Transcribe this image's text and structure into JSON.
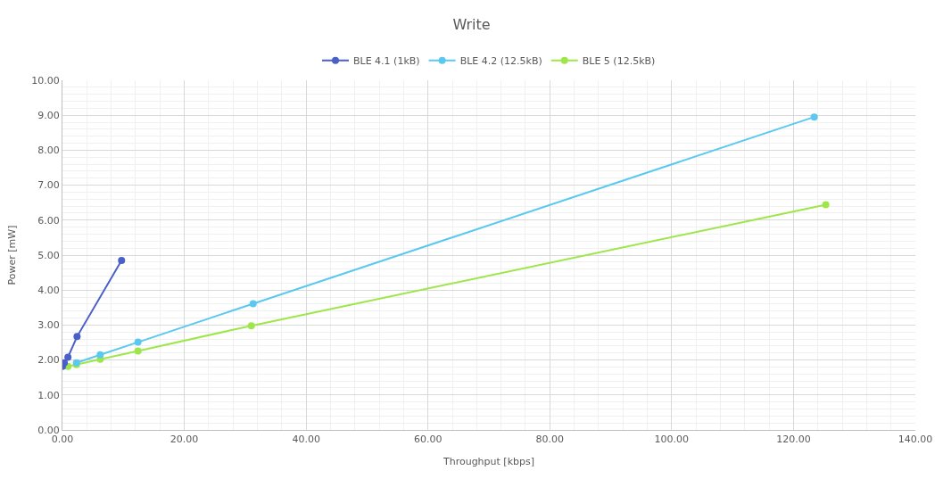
{
  "chart_data": {
    "type": "line",
    "title": "Write",
    "xlabel": "Throughput [kbps]",
    "ylabel": "Power [mW]",
    "xlim": [
      0,
      140
    ],
    "ylim": [
      0,
      10
    ],
    "xticks": [
      {
        "value": 0,
        "label": "0.00"
      },
      {
        "value": 20,
        "label": "20.00"
      },
      {
        "value": 40,
        "label": "40.00"
      },
      {
        "value": 60,
        "label": "60.00"
      },
      {
        "value": 80,
        "label": "80.00"
      },
      {
        "value": 100,
        "label": "100.00"
      },
      {
        "value": 120,
        "label": "120.00"
      },
      {
        "value": 140,
        "label": "140.00"
      }
    ],
    "yticks": [
      {
        "value": 0,
        "label": "0.00"
      },
      {
        "value": 1,
        "label": "1.00"
      },
      {
        "value": 2,
        "label": "2.00"
      },
      {
        "value": 3,
        "label": "3.00"
      },
      {
        "value": 4,
        "label": "4.00"
      },
      {
        "value": 5,
        "label": "5.00"
      },
      {
        "value": 6,
        "label": "6.00"
      },
      {
        "value": 7,
        "label": "7.00"
      },
      {
        "value": 8,
        "label": "8.00"
      },
      {
        "value": 9,
        "label": "9.00"
      },
      {
        "value": 10,
        "label": "10.00"
      }
    ],
    "grid": true,
    "legend": "top",
    "marker": "circle",
    "line_style": "solid",
    "series": [
      {
        "name": "BLE 4.1 (1kB)",
        "color": "#4a5fc8",
        "x": [
          0,
          0.3,
          0.9,
          2.4,
          9.7
        ],
        "values": [
          1.82,
          1.92,
          2.08,
          2.67,
          4.85
        ]
      },
      {
        "name": "BLE 4.2 (12.5kB)",
        "color": "#5bc8f0",
        "x": [
          2.3,
          6.2,
          12.4,
          31.3,
          123.4
        ],
        "values": [
          1.92,
          2.15,
          2.51,
          3.61,
          8.95
        ]
      },
      {
        "name": "BLE 5 (12.5kB)",
        "color": "#9ee64a",
        "x": [
          0.9,
          2.3,
          6.2,
          12.4,
          31.0,
          125.3
        ],
        "values": [
          1.82,
          1.87,
          2.02,
          2.26,
          2.98,
          6.44
        ]
      }
    ]
  }
}
